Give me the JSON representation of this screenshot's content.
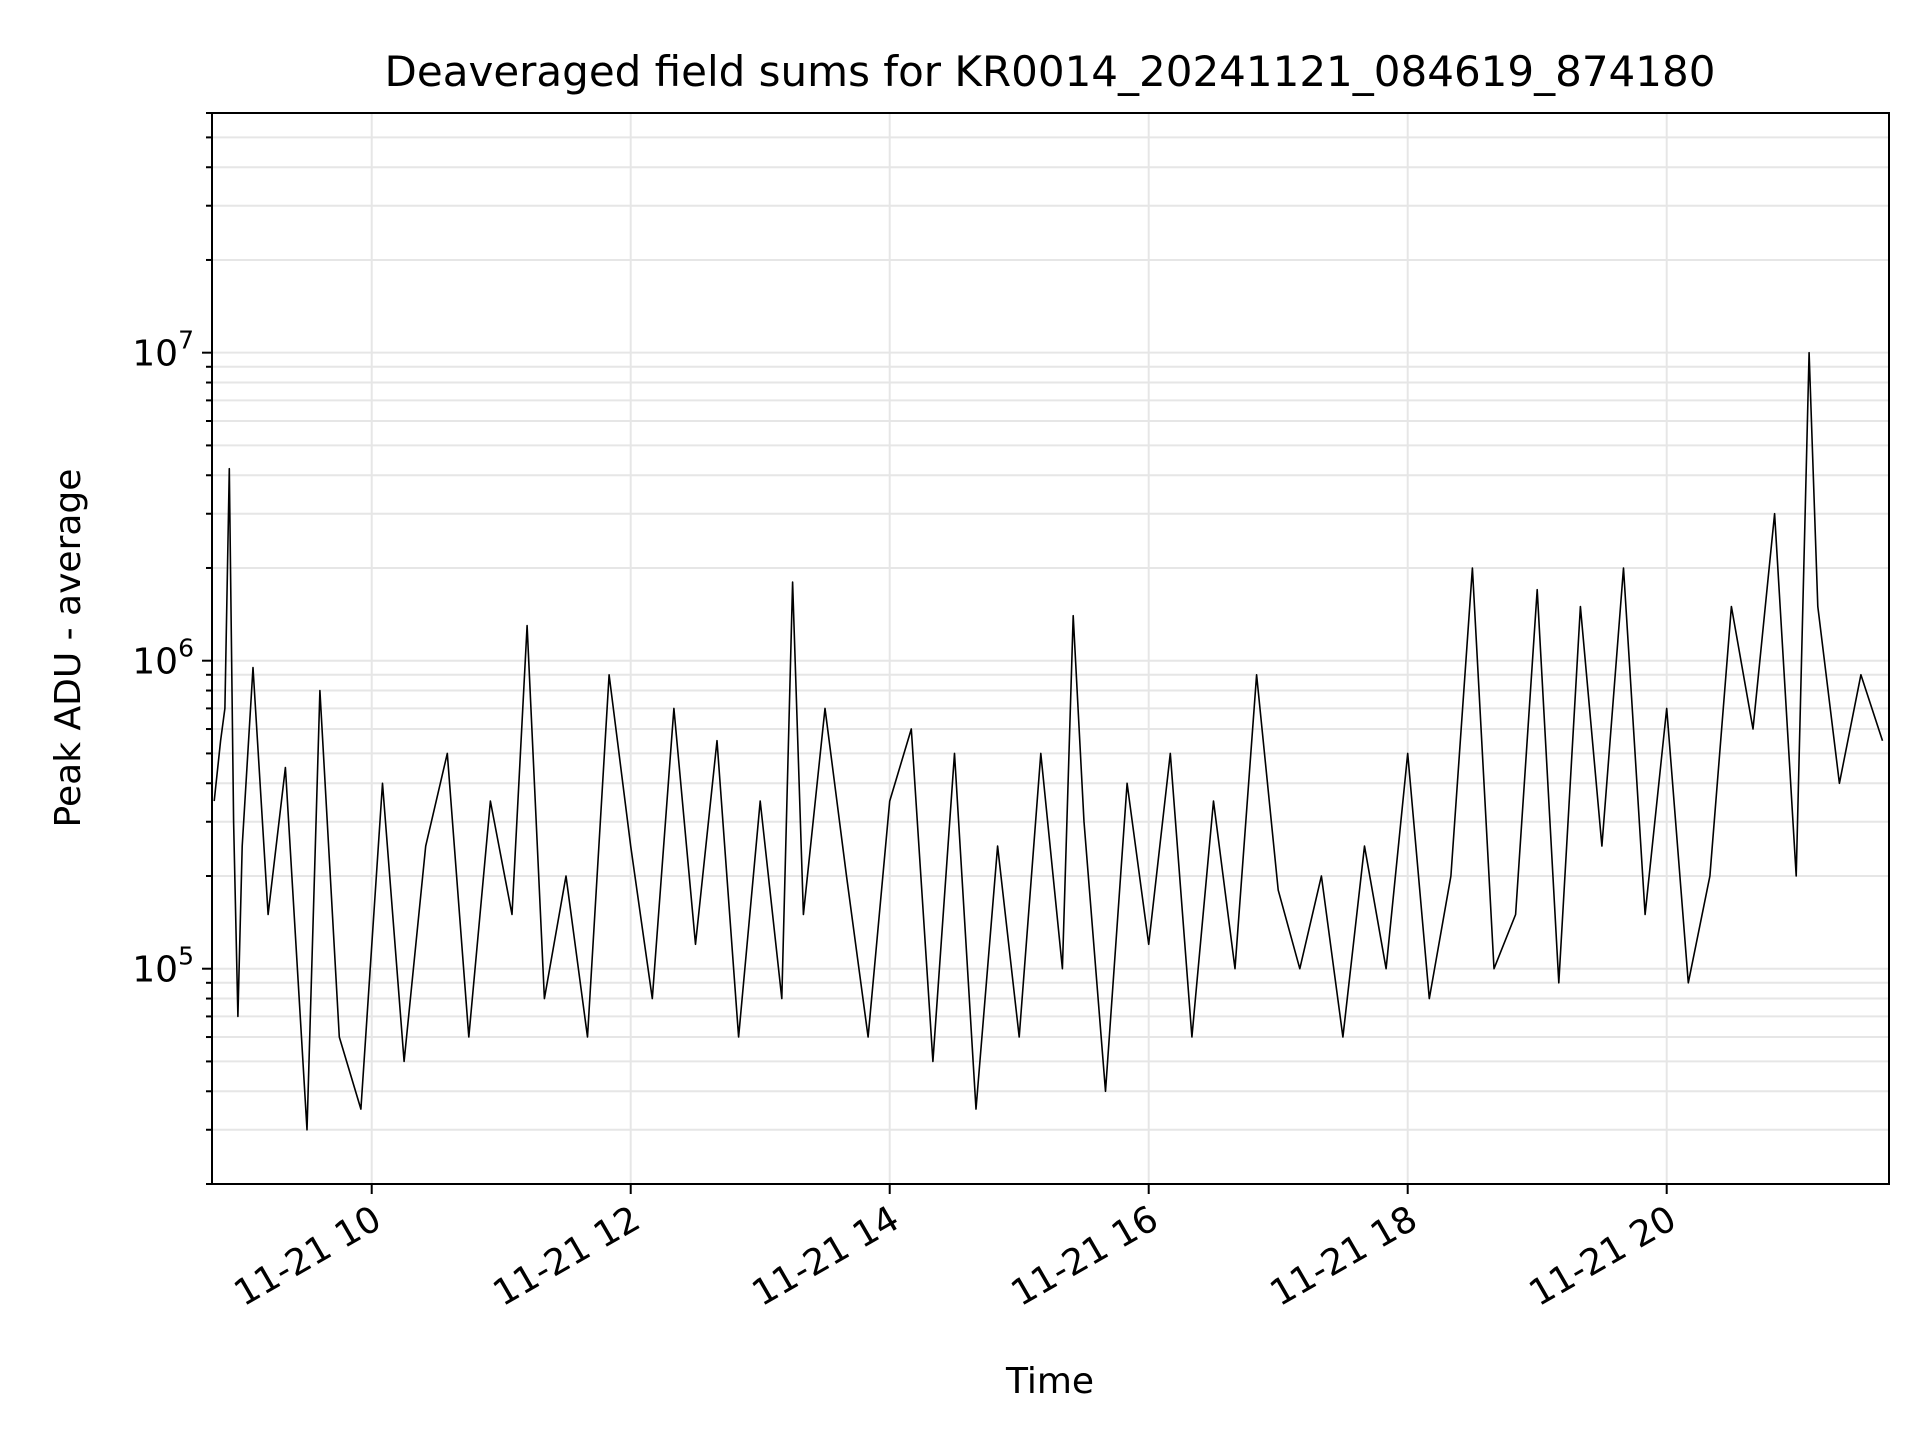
{
  "chart_data": {
    "type": "line",
    "title": "Deaveraged field sums for KR0014_20241121_084619_874180",
    "xlabel": "Time",
    "ylabel": "Peak ADU - average",
    "x_axis_type": "datetime",
    "x_range": [
      "2024-11-21 08:46",
      "2024-11-21 21:43"
    ],
    "xticks": [
      "11-21 10",
      "11-21 12",
      "11-21 14",
      "11-21 16",
      "11-21 18",
      "11-21 20"
    ],
    "y_scale": "log",
    "ylim": [
      20000,
      60000000
    ],
    "yticks": [
      {
        "base": "10",
        "exp": "5"
      },
      {
        "base": "10",
        "exp": "6"
      },
      {
        "base": "10",
        "exp": "7"
      }
    ],
    "grid": true,
    "line_color": "#000000",
    "series": [
      {
        "x": [
          "2024-11-21 08:47",
          "2024-11-21 08:50",
          "2024-11-21 08:52",
          "2024-11-21 08:54",
          "2024-11-21 08:56",
          "2024-11-21 08:58",
          "2024-11-21 09:00",
          "2024-11-21 09:05",
          "2024-11-21 09:12",
          "2024-11-21 09:20",
          "2024-11-21 09:30",
          "2024-11-21 09:36",
          "2024-11-21 09:45",
          "2024-11-21 09:55",
          "2024-11-21 10:05",
          "2024-11-21 10:15",
          "2024-11-21 10:25",
          "2024-11-21 10:35",
          "2024-11-21 10:45",
          "2024-11-21 10:55",
          "2024-11-21 11:05",
          "2024-11-21 11:12",
          "2024-11-21 11:20",
          "2024-11-21 11:30",
          "2024-11-21 11:40",
          "2024-11-21 11:50",
          "2024-11-21 12:00",
          "2024-11-21 12:10",
          "2024-11-21 12:20",
          "2024-11-21 12:30",
          "2024-11-21 12:40",
          "2024-11-21 12:50",
          "2024-11-21 13:00",
          "2024-11-21 13:10",
          "2024-11-21 13:15",
          "2024-11-21 13:20",
          "2024-11-21 13:30",
          "2024-11-21 13:40",
          "2024-11-21 13:50",
          "2024-11-21 14:00",
          "2024-11-21 14:10",
          "2024-11-21 14:20",
          "2024-11-21 14:30",
          "2024-11-21 14:40",
          "2024-11-21 14:50",
          "2024-11-21 15:00",
          "2024-11-21 15:10",
          "2024-11-21 15:20",
          "2024-11-21 15:25",
          "2024-11-21 15:30",
          "2024-11-21 15:40",
          "2024-11-21 15:50",
          "2024-11-21 16:00",
          "2024-11-21 16:10",
          "2024-11-21 16:20",
          "2024-11-21 16:30",
          "2024-11-21 16:40",
          "2024-11-21 16:50",
          "2024-11-21 17:00",
          "2024-11-21 17:10",
          "2024-11-21 17:20",
          "2024-11-21 17:30",
          "2024-11-21 17:40",
          "2024-11-21 17:50",
          "2024-11-21 18:00",
          "2024-11-21 18:10",
          "2024-11-21 18:20",
          "2024-11-21 18:30",
          "2024-11-21 18:40",
          "2024-11-21 18:50",
          "2024-11-21 19:00",
          "2024-11-21 19:10",
          "2024-11-21 19:20",
          "2024-11-21 19:30",
          "2024-11-21 19:40",
          "2024-11-21 19:50",
          "2024-11-21 20:00",
          "2024-11-21 20:10",
          "2024-11-21 20:20",
          "2024-11-21 20:30",
          "2024-11-21 20:40",
          "2024-11-21 20:50",
          "2024-11-21 21:00",
          "2024-11-21 21:06",
          "2024-11-21 21:10",
          "2024-11-21 21:20",
          "2024-11-21 21:30",
          "2024-11-21 21:40"
        ],
        "values": [
          350000,
          550000,
          700000,
          4200000,
          300000,
          70000,
          250000,
          950000,
          150000,
          450000,
          30000,
          800000,
          60000,
          35000,
          400000,
          50000,
          250000,
          500000,
          60000,
          350000,
          150000,
          1300000,
          80000,
          200000,
          60000,
          900000,
          250000,
          80000,
          700000,
          120000,
          550000,
          60000,
          350000,
          80000,
          1800000,
          150000,
          700000,
          200000,
          60000,
          350000,
          600000,
          50000,
          500000,
          35000,
          250000,
          60000,
          500000,
          100000,
          1400000,
          300000,
          40000,
          400000,
          120000,
          500000,
          60000,
          350000,
          100000,
          900000,
          180000,
          100000,
          200000,
          60000,
          250000,
          100000,
          500000,
          80000,
          200000,
          2000000,
          100000,
          150000,
          1700000,
          90000,
          1500000,
          250000,
          2000000,
          150000,
          700000,
          90000,
          200000,
          1500000,
          600000,
          3000000,
          200000,
          10000000,
          1500000,
          400000,
          900000,
          550000
        ]
      }
    ]
  }
}
